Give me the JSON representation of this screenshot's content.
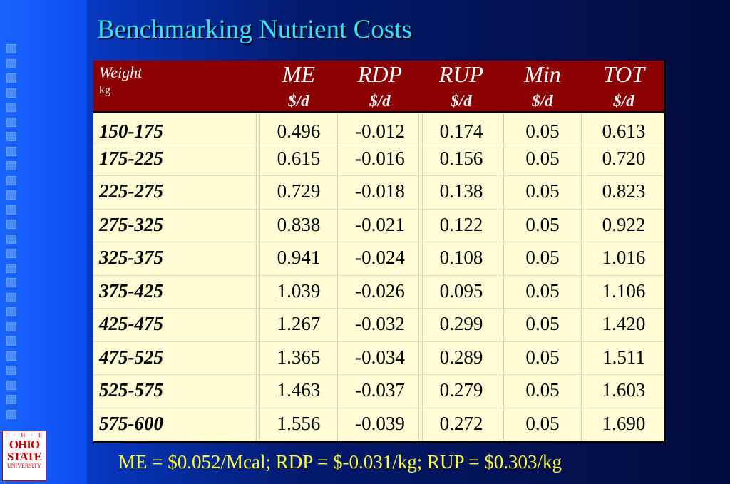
{
  "title": "Benchmarking Nutrient Costs",
  "table": {
    "weight_header": "Weight",
    "weight_unit": "kg",
    "columns": [
      {
        "name": "ME",
        "unit": "$/d"
      },
      {
        "name": "RDP",
        "unit": "$/d"
      },
      {
        "name": "RUP",
        "unit": "$/d"
      },
      {
        "name": "Min",
        "unit": "$/d"
      },
      {
        "name": "TOT",
        "unit": "$/d"
      }
    ],
    "rows": [
      {
        "weight": "150-175",
        "values": [
          "0.496",
          "-0.012",
          "0.174",
          "0.05",
          "0.613"
        ]
      },
      {
        "weight": "175-225",
        "values": [
          "0.615",
          "-0.016",
          "0.156",
          "0.05",
          "0.720"
        ]
      },
      {
        "weight": "225-275",
        "values": [
          "0.729",
          "-0.018",
          "0.138",
          "0.05",
          "0.823"
        ]
      },
      {
        "weight": "275-325",
        "values": [
          "0.838",
          "-0.021",
          "0.122",
          "0.05",
          "0.922"
        ]
      },
      {
        "weight": "325-375",
        "values": [
          "0.941",
          "-0.024",
          "0.108",
          "0.05",
          "1.016"
        ]
      },
      {
        "weight": "375-425",
        "values": [
          "1.039",
          "-0.026",
          "0.095",
          "0.05",
          "1.106"
        ]
      },
      {
        "weight": "425-475",
        "values": [
          "1.267",
          "-0.032",
          "0.299",
          "0.05",
          "1.420"
        ]
      },
      {
        "weight": "475-525",
        "values": [
          "1.365",
          "-0.034",
          "0.289",
          "0.05",
          "1.511"
        ]
      },
      {
        "weight": "525-575",
        "values": [
          "1.463",
          "-0.037",
          "0.279",
          "0.05",
          "1.603"
        ]
      },
      {
        "weight": "575-600",
        "values": [
          "1.556",
          "-0.039",
          "0.272",
          "0.05",
          "1.690"
        ]
      }
    ]
  },
  "footnote": "ME = $0.052/Mcal; RDP = $-0.031/kg; RUP = $0.303/kg",
  "logo": {
    "top": "T · H · E",
    "line1": "OHIO",
    "line2": "STATE",
    "bottom": "UNIVERSITY"
  },
  "colors": {
    "title": "#33e0ff",
    "header_bg": "#8b0000",
    "table_bg": "#fffcd6",
    "footnote": "#ffff33"
  }
}
